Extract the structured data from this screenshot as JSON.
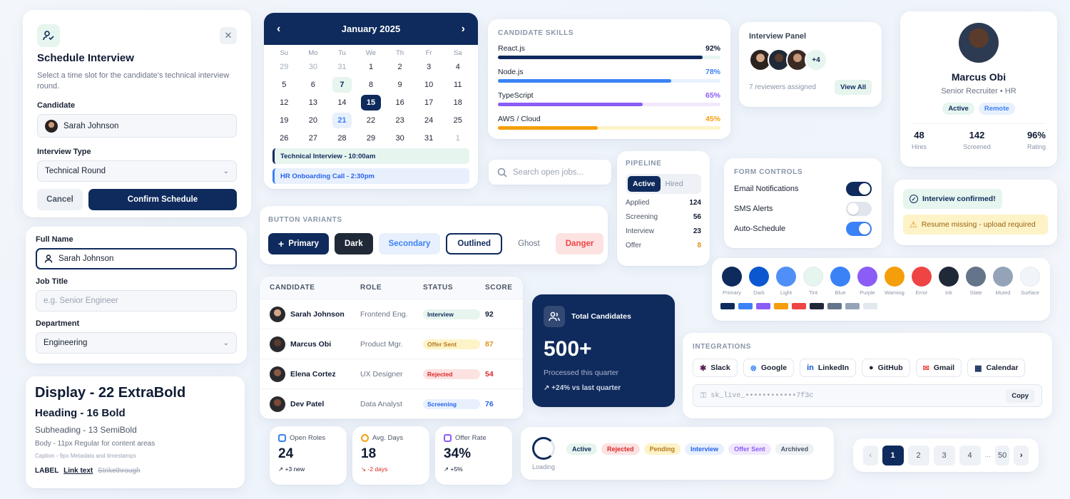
{
  "schedule": {
    "title": "Schedule Interview",
    "desc": "Select a time slot for the candidate's technical interview round.",
    "candidate_label": "Candidate",
    "candidate_value": "Sarah Johnson",
    "type_label": "Interview Type",
    "type_value": "Technical Round",
    "cancel": "Cancel",
    "confirm": "Confirm Schedule"
  },
  "calendar": {
    "month": "January 2025",
    "weekdays": [
      "Su",
      "Mo",
      "Tu",
      "We",
      "Th",
      "Fr",
      "Sa"
    ],
    "days": [
      [
        "29",
        "30",
        "31",
        "1",
        "2",
        "3",
        "4"
      ],
      [
        "5",
        "6",
        "7",
        "8",
        "9",
        "10",
        "11"
      ],
      [
        "12",
        "13",
        "14",
        "15",
        "16",
        "17",
        "18"
      ],
      [
        "19",
        "20",
        "21",
        "22",
        "23",
        "24",
        "25"
      ],
      [
        "26",
        "27",
        "28",
        "29",
        "30",
        "31",
        "1"
      ]
    ],
    "event1": "Technical Interview - 10:00am",
    "event2": "HR Onboarding Call - 2:30pm"
  },
  "skills": {
    "title": "Candidate Skills",
    "items": [
      {
        "name": "React.js",
        "pct": "92%",
        "value": 92,
        "color": "#0f2a5c"
      },
      {
        "name": "Node.js",
        "pct": "78%",
        "value": 78,
        "color": "#3b82f6"
      },
      {
        "name": "TypeScript",
        "pct": "65%",
        "value": 65,
        "color": "#8b5cf6"
      },
      {
        "name": "AWS / Cloud",
        "pct": "45%",
        "value": 45,
        "color": "#f59e0b"
      }
    ]
  },
  "panel": {
    "title": "Interview Panel",
    "more": "+4",
    "count": "7 reviewers assigned",
    "view_all": "View All"
  },
  "profile": {
    "name": "Marcus Obi",
    "role": "Senior Recruiter • HR",
    "badge1": "Active",
    "badge2": "Remote",
    "stats": [
      {
        "value": "48",
        "label": "Hires"
      },
      {
        "value": "142",
        "label": "Screened"
      },
      {
        "value": "96%",
        "label": "Rating"
      }
    ]
  },
  "search": {
    "placeholder": "Search open jobs..."
  },
  "pipeline": {
    "title": "Pipeline",
    "tab_active": "Active",
    "tab_hired": "Hired",
    "rows": [
      {
        "label": "Applied",
        "value": "124"
      },
      {
        "label": "Screening",
        "value": "56"
      },
      {
        "label": "Interview",
        "value": "23"
      },
      {
        "label": "Offer",
        "value": "8"
      }
    ]
  },
  "form_controls": {
    "title": "Form Controls",
    "items": [
      {
        "label": "Email Notifications",
        "on": true
      },
      {
        "label": "SMS Alerts",
        "on": false
      },
      {
        "label": "Auto-Schedule",
        "on": true
      }
    ]
  },
  "alerts": {
    "success": "Interview confirmed!",
    "warning": "Resume missing - upload required"
  },
  "form": {
    "name_label": "Full Name",
    "name_value": "Sarah Johnson",
    "job_label": "Job Title",
    "job_placeholder": "e.g. Senior Engineer",
    "dept_label": "Department",
    "dept_value": "Engineering"
  },
  "buttons": {
    "title": "Button Variants",
    "primary": "Primary",
    "dark": "Dark",
    "secondary": "Secondary",
    "outlined": "Outlined",
    "ghost": "Ghost",
    "danger": "Danger"
  },
  "palette": {
    "colors": [
      {
        "name": "Primary",
        "hex": "#0f2a5c"
      },
      {
        "name": "Dark",
        "hex": "#0b57d0"
      },
      {
        "name": "Light",
        "hex": "#4f8ff7"
      },
      {
        "name": "Tint",
        "hex": "#e6f5ee"
      },
      {
        "name": "Blue",
        "hex": "#3b82f6"
      },
      {
        "name": "Purple",
        "hex": "#8b5cf6"
      },
      {
        "name": "Warning",
        "hex": "#f59e0b"
      },
      {
        "name": "Error",
        "hex": "#ef4444"
      },
      {
        "name": "Ink",
        "hex": "#1f2937"
      },
      {
        "name": "Slate",
        "hex": "#64748b"
      },
      {
        "name": "Muted",
        "hex": "#94a3b8"
      },
      {
        "name": "Surface",
        "hex": "#f1f5f9"
      }
    ],
    "strip": [
      "#0f2a5c",
      "#3b82f6",
      "#8b5cf6",
      "#f59e0b",
      "#ef4444",
      "#1f2937",
      "#64748b",
      "#94a3b8",
      "#e2e8f0"
    ]
  },
  "table": {
    "headers": [
      "Candidate",
      "Role",
      "Status",
      "Score"
    ],
    "rows": [
      {
        "name": "Sarah Johnson",
        "role": "Frontend Eng.",
        "status": "Interview",
        "score": "92",
        "bg": "#e6f5ee",
        "fg": "#0f2a5c",
        "sc": "#0f1b33"
      },
      {
        "name": "Marcus Obi",
        "role": "Product Mgr.",
        "status": "Offer Sent",
        "score": "87",
        "bg": "#fdf3c7",
        "fg": "#b7791f",
        "sc": "#e0901a"
      },
      {
        "name": "Elena Cortez",
        "role": "UX Designer",
        "status": "Rejected",
        "score": "54",
        "bg": "#fde2e2",
        "fg": "#dc2626",
        "sc": "#dc2626"
      },
      {
        "name": "Dev Patel",
        "role": "Data Analyst",
        "status": "Screening",
        "score": "76",
        "bg": "#e8f0fe",
        "fg": "#2563eb",
        "sc": "#2563eb"
      }
    ]
  },
  "total": {
    "title": "Total Candidates",
    "value": "500+",
    "sub": "Processed this quarter",
    "trend": "+24% vs last quarter"
  },
  "integrations": {
    "title": "Integrations",
    "items": [
      "Slack",
      "Google",
      "LinkedIn",
      "GitHub",
      "Gmail",
      "Calendar"
    ],
    "key": "sk_live_••••••••••••7f3c",
    "copy": "Copy"
  },
  "typography": {
    "display": "Display - 22 ExtraBold",
    "heading": "Heading - 16 Bold",
    "subheading": "Subheading - 13 SemiBold",
    "body": "Body - 11px Regular for content areas",
    "caption": "Caption - 9px Metadata and timestamps",
    "label": "LABEL",
    "link": "Link text",
    "strike": "Strikethrough"
  },
  "stats": [
    {
      "label": "Open Roles",
      "value": "24",
      "trend": "+3 new",
      "color": "#3b82f6",
      "tc": "#0f1b33"
    },
    {
      "label": "Avg. Days",
      "value": "18",
      "trend": "-2 days",
      "color": "#f59e0b",
      "tc": "#dc2626"
    },
    {
      "label": "Offer Rate",
      "value": "34%",
      "trend": "+5%",
      "color": "#8b5cf6",
      "tc": "#0f1b33"
    }
  ],
  "status_badges": {
    "loading": "Loading",
    "items": [
      {
        "label": "Active",
        "bg": "#e6f5ee",
        "fg": "#0f2a5c"
      },
      {
        "label": "Rejected",
        "bg": "#fde2e2",
        "fg": "#dc2626"
      },
      {
        "label": "Pending",
        "bg": "#fdf3c7",
        "fg": "#b7791f"
      },
      {
        "label": "Interview",
        "bg": "#e8f0fe",
        "fg": "#2563eb"
      },
      {
        "label": "Offer Sent",
        "bg": "#f1e8fd",
        "fg": "#8b5cf6"
      },
      {
        "label": "Archived",
        "bg": "#eef1f5",
        "fg": "#4b5566"
      }
    ]
  },
  "pagination": {
    "pages": [
      "1",
      "2",
      "3",
      "4"
    ],
    "ellipsis": "...",
    "last": "50"
  }
}
